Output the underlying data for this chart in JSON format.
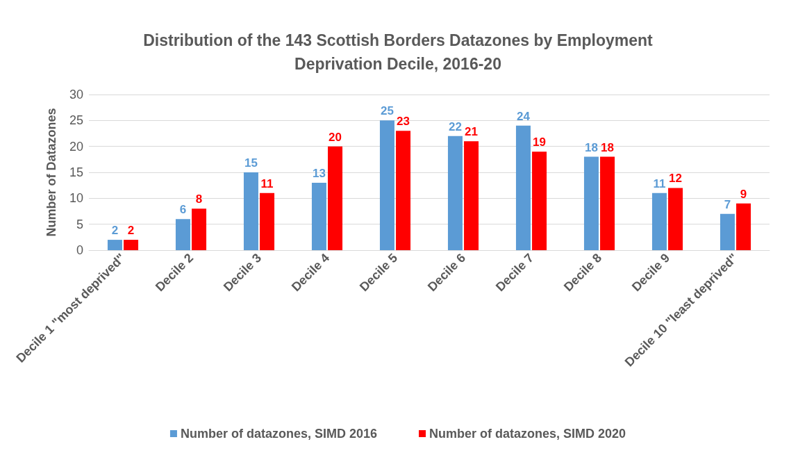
{
  "chart_data": {
    "type": "bar",
    "title": "Distribution of the 143 Scottish Borders Datazones by Employment\nDeprivation Decile, 2016-20",
    "ylabel": "Number of Datazones",
    "categories": [
      "Decile 1 \"most deprived\"",
      "Decile 2",
      "Decile 3",
      "Decile 4",
      "Decile 5",
      "Decile 6",
      "Decile 7",
      "Decile 8",
      "Decile 9",
      "Decile 10 \"least deprived\""
    ],
    "series": [
      {
        "name": "Number of datazones, SIMD 2016",
        "color": "#5b9bd5",
        "values": [
          2,
          6,
          15,
          13,
          25,
          22,
          24,
          18,
          11,
          7
        ]
      },
      {
        "name": "Number of datazones, SIMD 2020",
        "color": "#ff0000",
        "values": [
          2,
          8,
          11,
          20,
          23,
          21,
          19,
          18,
          12,
          9
        ]
      }
    ],
    "ylim": [
      0,
      30
    ],
    "yticks": [
      0,
      5,
      10,
      15,
      20,
      25,
      30
    ],
    "grid": "y",
    "legend": "bottom",
    "data_labels": true
  }
}
